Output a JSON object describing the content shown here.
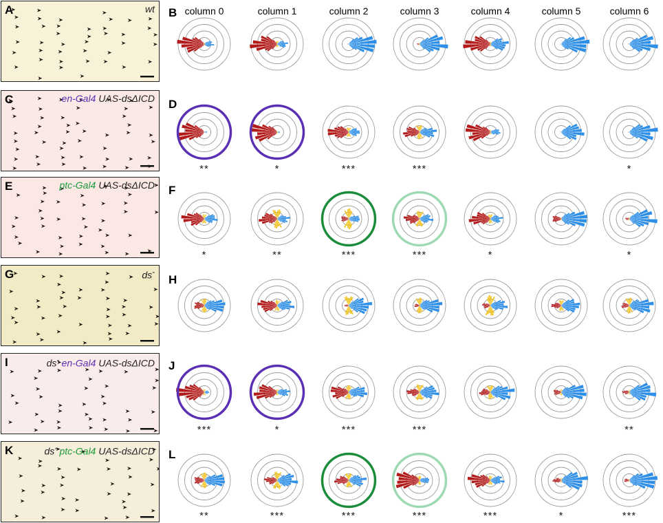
{
  "columns": [
    "column 0",
    "column 1",
    "column 2",
    "column 3",
    "column 4",
    "column 5",
    "column 6"
  ],
  "colors": {
    "anterior": "#b31b1b",
    "lateral": "#f2c21a",
    "posterior": "#2e8fe8",
    "en_ring": "#5a2fb3",
    "ptc_ring": "#1a8c3a",
    "ptc_ring_light": "#9fd8b4",
    "grid": "#9a9a9a",
    "en_text": "#5a2fb3",
    "ptc_text": "#1a9a3a"
  },
  "image_panels": [
    {
      "label": "A",
      "bg": "#f8f3d8",
      "genotype": [
        {
          "text": "wt",
          "color": "#222222"
        }
      ]
    },
    {
      "label": "C",
      "bg": "#fbe9e6",
      "genotype": [
        {
          "text": "en-Gal4",
          "color": "#5a2fb3"
        },
        {
          "text": " UAS-dsΔICD",
          "color": "#222222"
        }
      ]
    },
    {
      "label": "E",
      "bg": "#fbe8e4",
      "genotype": [
        {
          "text": "ptc-Gal4",
          "color": "#1a9a3a"
        },
        {
          "text": " UAS-dsΔICD",
          "color": "#222222"
        }
      ]
    },
    {
      "label": "G",
      "bg": "#f3ebc5",
      "genotype": [
        {
          "text": "ds",
          "color": "#222222"
        },
        {
          "text": "-",
          "color": "#222222"
        }
      ]
    },
    {
      "label": "I",
      "bg": "#fbecec",
      "genotype": [
        {
          "text": "ds",
          "color": "#222222"
        },
        {
          "text": "- ",
          "color": "#222222"
        },
        {
          "text": "en-Gal4",
          "color": "#5a2fb3"
        },
        {
          "text": " UAS-dsΔICD",
          "color": "#222222"
        }
      ]
    },
    {
      "label": "K",
      "bg": "#f5eedb",
      "genotype": [
        {
          "text": "ds",
          "color": "#222222"
        },
        {
          "text": "- ",
          "color": "#222222"
        },
        {
          "text": "ptc-Gal4",
          "color": "#1a9a3a"
        },
        {
          "text": " UAS-dsΔICD",
          "color": "#222222"
        }
      ]
    }
  ],
  "rose_rows": [
    {
      "label": "B",
      "plots": [
        {
          "a": 0.95,
          "l": 0.1,
          "p": 0.35,
          "ring": ""
        },
        {
          "a": 0.95,
          "l": 0.2,
          "p": 0.4,
          "ring": ""
        },
        {
          "a": 0.05,
          "l": 0.05,
          "p": 1.0,
          "ring": ""
        },
        {
          "a": 0.1,
          "l": 0.1,
          "p": 1.0,
          "ring": ""
        },
        {
          "a": 0.95,
          "l": 0.15,
          "p": 0.7,
          "ring": ""
        },
        {
          "a": 0.05,
          "l": 0.0,
          "p": 1.0,
          "ring": ""
        },
        {
          "a": 0.05,
          "l": 0.0,
          "p": 1.0,
          "ring": ""
        }
      ],
      "stars": [
        "",
        "",
        "",
        "",
        "",
        "",
        ""
      ]
    },
    {
      "label": "D",
      "plots": [
        {
          "a": 1.0,
          "l": 0.05,
          "p": 0.1,
          "ring": "en"
        },
        {
          "a": 1.0,
          "l": 0.1,
          "p": 0.1,
          "ring": "en"
        },
        {
          "a": 0.75,
          "l": 0.3,
          "p": 0.45,
          "ring": ""
        },
        {
          "a": 0.6,
          "l": 0.45,
          "p": 0.6,
          "ring": ""
        },
        {
          "a": 0.95,
          "l": 0.15,
          "p": 0.35,
          "ring": ""
        },
        {
          "a": 0.05,
          "l": 0.0,
          "p": 0.9,
          "ring": ""
        },
        {
          "a": 0.05,
          "l": 0.05,
          "p": 1.0,
          "ring": ""
        }
      ],
      "stars": [
        "**",
        "*",
        "***",
        "***",
        "",
        "",
        "*"
      ]
    },
    {
      "label": "F",
      "plots": [
        {
          "a": 0.8,
          "l": 0.3,
          "p": 0.5,
          "ring": ""
        },
        {
          "a": 0.65,
          "l": 0.6,
          "p": 0.45,
          "ring": ""
        },
        {
          "a": 0.3,
          "l": 0.65,
          "p": 0.4,
          "ring": "ptc"
        },
        {
          "a": 0.55,
          "l": 0.5,
          "p": 0.5,
          "ring": "ptc_light"
        },
        {
          "a": 0.75,
          "l": 0.3,
          "p": 0.45,
          "ring": ""
        },
        {
          "a": 0.35,
          "l": 0.1,
          "p": 0.95,
          "ring": ""
        },
        {
          "a": 0.15,
          "l": 0.1,
          "p": 1.0,
          "ring": ""
        }
      ],
      "stars": [
        "*",
        "**",
        "***",
        "***",
        "*",
        "",
        "*"
      ]
    },
    {
      "label": "H",
      "plots": [
        {
          "a": 0.4,
          "l": 0.45,
          "p": 0.75,
          "ring": ""
        },
        {
          "a": 0.7,
          "l": 0.35,
          "p": 0.6,
          "ring": ""
        },
        {
          "a": 0.15,
          "l": 0.6,
          "p": 0.9,
          "ring": ""
        },
        {
          "a": 0.2,
          "l": 0.5,
          "p": 0.8,
          "ring": ""
        },
        {
          "a": 0.3,
          "l": 0.65,
          "p": 0.6,
          "ring": ""
        },
        {
          "a": 0.35,
          "l": 0.35,
          "p": 0.75,
          "ring": ""
        },
        {
          "a": 0.3,
          "l": 0.5,
          "p": 0.85,
          "ring": ""
        }
      ],
      "stars": [
        "",
        "",
        "",
        "",
        "",
        "",
        ""
      ]
    },
    {
      "label": "J",
      "plots": [
        {
          "a": 1.0,
          "l": 0.2,
          "p": 0.2,
          "ring": "en"
        },
        {
          "a": 0.85,
          "l": 0.2,
          "p": 0.45,
          "ring": "en"
        },
        {
          "a": 0.7,
          "l": 0.45,
          "p": 0.65,
          "ring": ""
        },
        {
          "a": 0.45,
          "l": 0.5,
          "p": 0.75,
          "ring": ""
        },
        {
          "a": 0.4,
          "l": 0.45,
          "p": 0.85,
          "ring": ""
        },
        {
          "a": 0.3,
          "l": 0.2,
          "p": 0.9,
          "ring": ""
        },
        {
          "a": 0.25,
          "l": 0.15,
          "p": 1.0,
          "ring": ""
        }
      ],
      "stars": [
        "***",
        "*",
        "***",
        "***",
        "",
        "",
        "**"
      ]
    },
    {
      "label": "L",
      "plots": [
        {
          "a": 0.4,
          "l": 0.5,
          "p": 0.75,
          "ring": ""
        },
        {
          "a": 0.45,
          "l": 0.55,
          "p": 0.75,
          "ring": ""
        },
        {
          "a": 0.5,
          "l": 0.45,
          "p": 0.65,
          "ring": "ptc"
        },
        {
          "a": 0.95,
          "l": 0.3,
          "p": 0.35,
          "ring": "ptc_light"
        },
        {
          "a": 0.8,
          "l": 0.3,
          "p": 0.5,
          "ring": ""
        },
        {
          "a": 0.3,
          "l": 0.15,
          "p": 1.0,
          "ring": ""
        },
        {
          "a": 0.2,
          "l": 0.1,
          "p": 1.0,
          "ring": ""
        }
      ],
      "stars": [
        "**",
        "***",
        "***",
        "***",
        "***",
        "*",
        "***"
      ]
    }
  ]
}
